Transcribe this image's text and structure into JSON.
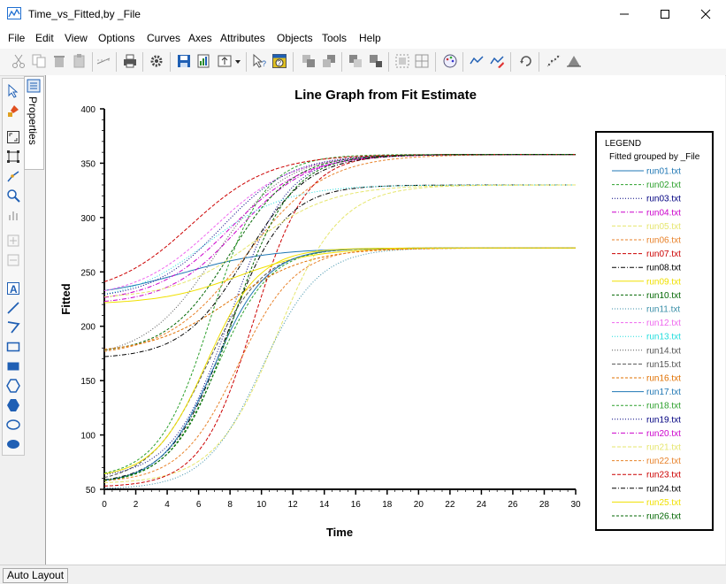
{
  "window": {
    "title": "Time_vs_Fitted,by _File"
  },
  "menu": [
    "File",
    "Edit",
    "View",
    "Options",
    "Curves",
    "Axes",
    "Attributes",
    "Objects",
    "Tools",
    "Help"
  ],
  "side_panel": {
    "tab_label": "Properties"
  },
  "status": {
    "text": "Auto Layout"
  },
  "colors": {
    "accent": "#1f6fd1"
  },
  "chart_data": {
    "type": "line",
    "title": "Line Graph from Fit Estimate",
    "xlabel": "Time",
    "ylabel": "Fitted",
    "xlim": [
      0,
      30
    ],
    "ylim": [
      50,
      400
    ],
    "xticks": [
      0,
      2,
      4,
      6,
      8,
      10,
      12,
      14,
      16,
      18,
      20,
      22,
      24,
      26,
      28,
      30
    ],
    "yticks": [
      50,
      100,
      150,
      200,
      250,
      300,
      350,
      400
    ],
    "grid": false,
    "legend": {
      "title": "LEGEND",
      "subtitle": "Fitted grouped by _File",
      "position": "right"
    },
    "series": [
      {
        "name": "run01.txt",
        "color": "#1f77b4",
        "dash": "",
        "low": 226,
        "high": 272,
        "mid": 5.0,
        "rate": 0.35
      },
      {
        "name": "run02.txt",
        "color": "#2ca02c",
        "dash": "3,2",
        "low": 55,
        "high": 272,
        "mid": 7.2,
        "rate": 0.6
      },
      {
        "name": "run03.txt",
        "color": "#000080",
        "dash": "1,2",
        "low": 60,
        "high": 358,
        "mid": 8.0,
        "rate": 0.55
      },
      {
        "name": "run04.txt",
        "color": "#cc00cc",
        "dash": "5,2,1,2",
        "low": 220,
        "high": 358,
        "mid": 8.5,
        "rate": 0.45
      },
      {
        "name": "run05.txt",
        "color": "#e6e66e",
        "dash": "4,2",
        "low": 55,
        "high": 330,
        "mid": 11.0,
        "rate": 0.5
      },
      {
        "name": "run06.txt",
        "color": "#e8822a",
        "dash": "3,2",
        "low": 172,
        "high": 358,
        "mid": 9.0,
        "rate": 0.4
      },
      {
        "name": "run07.txt",
        "color": "#cc0000",
        "dash": "4,2",
        "low": 52,
        "high": 358,
        "mid": 9.5,
        "rate": 0.6
      },
      {
        "name": "run08.txt",
        "color": "#000000",
        "dash": "5,2,1,2",
        "low": 55,
        "high": 330,
        "mid": 7.8,
        "rate": 0.55
      },
      {
        "name": "run09.txt",
        "color": "#f0e000",
        "dash": "",
        "low": 220,
        "high": 272,
        "mid": 8.5,
        "rate": 0.4
      },
      {
        "name": "run10.txt",
        "color": "#006600",
        "dash": "3,2",
        "low": 175,
        "high": 358,
        "mid": 8.0,
        "rate": 0.5
      },
      {
        "name": "run11.txt",
        "color": "#3a8fa8",
        "dash": "1,2",
        "low": 50,
        "high": 272,
        "mid": 10.0,
        "rate": 0.55
      },
      {
        "name": "run12.txt",
        "color": "#ee66ee",
        "dash": "3,2",
        "low": 225,
        "high": 358,
        "mid": 7.0,
        "rate": 0.4
      },
      {
        "name": "run13.txt",
        "color": "#22dddd",
        "dash": "1,2",
        "low": 222,
        "high": 330,
        "mid": 6.5,
        "rate": 0.4
      },
      {
        "name": "run14.txt",
        "color": "#555555",
        "dash": "1,2",
        "low": 170,
        "high": 358,
        "mid": 7.0,
        "rate": 0.45
      },
      {
        "name": "run15.txt",
        "color": "#555555",
        "dash": "4,2",
        "low": 55,
        "high": 272,
        "mid": 6.5,
        "rate": 0.55
      },
      {
        "name": "run16.txt",
        "color": "#e07000",
        "dash": "3,2",
        "low": 175,
        "high": 272,
        "mid": 8.0,
        "rate": 0.4
      },
      {
        "name": "run17.txt",
        "color": "#1f77b4",
        "dash": "",
        "low": 55,
        "high": 272,
        "mid": 7.0,
        "rate": 0.6
      },
      {
        "name": "run18.txt",
        "color": "#2ca02c",
        "dash": "3,2",
        "low": 60,
        "high": 358,
        "mid": 6.8,
        "rate": 0.6
      },
      {
        "name": "run19.txt",
        "color": "#000080",
        "dash": "1,2",
        "low": 225,
        "high": 358,
        "mid": 7.5,
        "rate": 0.45
      },
      {
        "name": "run20.txt",
        "color": "#cc00cc",
        "dash": "5,2,1,2",
        "low": 222,
        "high": 358,
        "mid": 8.0,
        "rate": 0.42
      },
      {
        "name": "run21.txt",
        "color": "#e6e66e",
        "dash": "4,2",
        "low": 225,
        "high": 330,
        "mid": 9.5,
        "rate": 0.4
      },
      {
        "name": "run22.txt",
        "color": "#e8822a",
        "dash": "3,2",
        "low": 56,
        "high": 272,
        "mid": 8.5,
        "rate": 0.55
      },
      {
        "name": "run23.txt",
        "color": "#cc0000",
        "dash": "4,2",
        "low": 228,
        "high": 358,
        "mid": 5.5,
        "rate": 0.4
      },
      {
        "name": "run24.txt",
        "color": "#000000",
        "dash": "5,2,1,2",
        "low": 170,
        "high": 358,
        "mid": 9.0,
        "rate": 0.5
      },
      {
        "name": "run25.txt",
        "color": "#f0e000",
        "dash": "",
        "low": 60,
        "high": 272,
        "mid": 6.5,
        "rate": 0.6
      },
      {
        "name": "run26.txt",
        "color": "#006600",
        "dash": "3,2",
        "low": 55,
        "high": 358,
        "mid": 8.2,
        "rate": 0.55
      }
    ]
  }
}
